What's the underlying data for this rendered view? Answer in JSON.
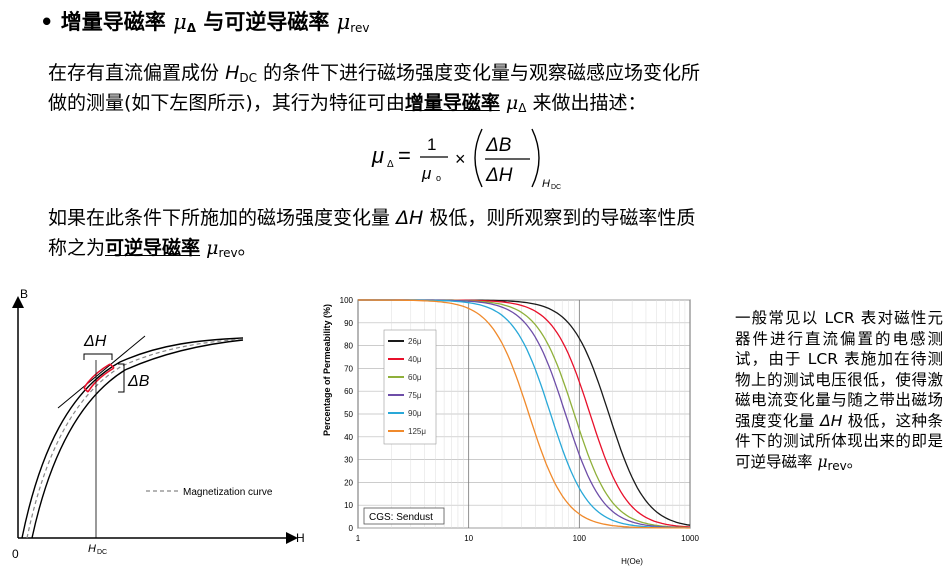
{
  "header": {
    "bullet": "•",
    "title_a": "增量导磁率",
    "mu": "μ",
    "sub_delta": "Δ",
    "title_b": "与可逆导磁率",
    "sub_rev": "rev"
  },
  "para1": {
    "line1_a": "在存有直流偏置成份",
    "h": "H",
    "h_sub": "DC",
    "line1_b": "的条件下进行磁场强度变化量与观察磁感应场变化所",
    "line2_a": "做的测量(如下左图所示)，其行为特征可由",
    "line2_term": "增量导磁率",
    "line2_b": "来做出描述："
  },
  "formula": {
    "lhs": "μ",
    "lhs_sub": "Δ",
    "eq": "=",
    "num": "1",
    "den": "μ",
    "den_sub": "o",
    "times": "×",
    "dB": "ΔB",
    "dH": "ΔH",
    "sub_h": "H",
    "sub_dc": "DC"
  },
  "para2": {
    "line1_a": "如果在此条件下所施加的磁场强度变化量",
    "dh": "ΔH",
    "line1_b": "极低，则所观察到的导磁率性质",
    "line2_a": "称之为",
    "line2_term": "可逆导磁率",
    "line2_end": "。"
  },
  "left_figure": {
    "y_axis": "B",
    "x_axis": "H",
    "origin": "0",
    "delta_h": "ΔH",
    "delta_b": "ΔB",
    "hdc": "H",
    "hdc_sub": "DC",
    "legend": "Magnetization curve"
  },
  "chart_data": {
    "type": "line",
    "xlabel": "H(Oe)",
    "ylabel": "Percentage of Permeability (%)",
    "x_scale": "log",
    "xlim": [
      1,
      1000
    ],
    "ylim": [
      0,
      100
    ],
    "x_ticks": [
      "1",
      "10",
      "100",
      "1000"
    ],
    "y_ticks": [
      "0",
      "10",
      "20",
      "30",
      "40",
      "50",
      "60",
      "70",
      "80",
      "90",
      "100"
    ],
    "annotation": "CGS: Sendust",
    "legend_position": "left-center",
    "series": [
      {
        "name": "26μ",
        "color": "#1a1a1a",
        "h50": 185
      },
      {
        "name": "40μ",
        "color": "#e8102b",
        "h50": 125
      },
      {
        "name": "60μ",
        "color": "#8fb03a",
        "h50": 90
      },
      {
        "name": "75μ",
        "color": "#6e4ea8",
        "h50": 75
      },
      {
        "name": "90μ",
        "color": "#29a8d8",
        "h50": 55
      },
      {
        "name": "125μ",
        "color": "#f08a2c",
        "h50": 35
      }
    ]
  },
  "side_text": {
    "p1": "一般常见以 LCR 表对磁性元器件进行直流偏置的电感测试，由于 LCR 表施加在待测物上的测试电压很低，使得激磁电流变化量与随之带出磁场强度变化量",
    "dh": "ΔH",
    "p2": "极低，这种条件下的测试所体现出来的即是可逆导磁率",
    "mu": "μ",
    "mu_sub": "rev",
    "end": "。"
  }
}
